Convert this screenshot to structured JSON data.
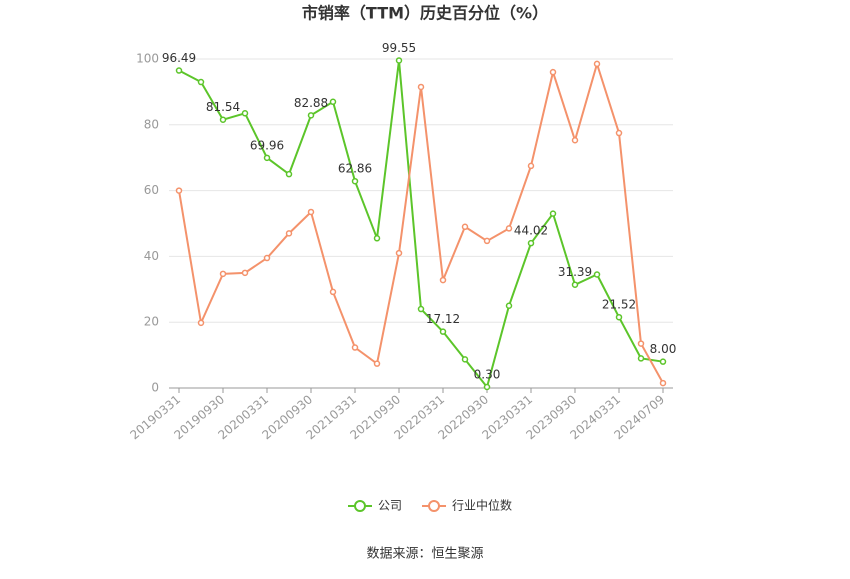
{
  "chart_data": {
    "type": "line",
    "title": "市销率（TTM）历史百分位（%）",
    "source": "数据来源：恒生聚源",
    "categories": [
      "20190331",
      null,
      "20190930",
      null,
      "20200331",
      null,
      "20200930",
      null,
      "20210331",
      null,
      "20210930",
      null,
      "20220331",
      null,
      "20220930",
      null,
      "20230331",
      null,
      "20230930",
      null,
      "20240331",
      null,
      "20240709"
    ],
    "ylim": [
      0,
      100
    ],
    "yticks": [
      0,
      20,
      40,
      60,
      80,
      100
    ],
    "grid": true,
    "legend": "bottom",
    "series": [
      {
        "name": "公司",
        "color": "#5cc52a",
        "values": [
          96.49,
          93,
          81.54,
          83.5,
          69.96,
          65,
          82.88,
          87,
          62.86,
          45.5,
          99.55,
          24,
          17.12,
          8.7,
          0.3,
          25,
          44.02,
          53,
          31.39,
          34.5,
          21.52,
          9,
          8.0
        ],
        "value_labels": [
          "96.49",
          null,
          "81.54",
          null,
          "69.96",
          null,
          "82.88",
          null,
          "62.86",
          null,
          "99.55",
          null,
          "17.12",
          null,
          "0.30",
          null,
          "44.02",
          null,
          "31.39",
          null,
          "21.52",
          null,
          "8.00"
        ]
      },
      {
        "name": "行业中位数",
        "color": "#f4926b",
        "values": [
          60,
          19.8,
          34.7,
          35,
          39.5,
          47,
          53.5,
          29.2,
          12.3,
          7.4,
          41,
          91.5,
          32.8,
          49,
          44.7,
          48.5,
          67.5,
          96,
          75.3,
          98.5,
          77.5,
          13.5,
          1.5
        ]
      }
    ]
  }
}
